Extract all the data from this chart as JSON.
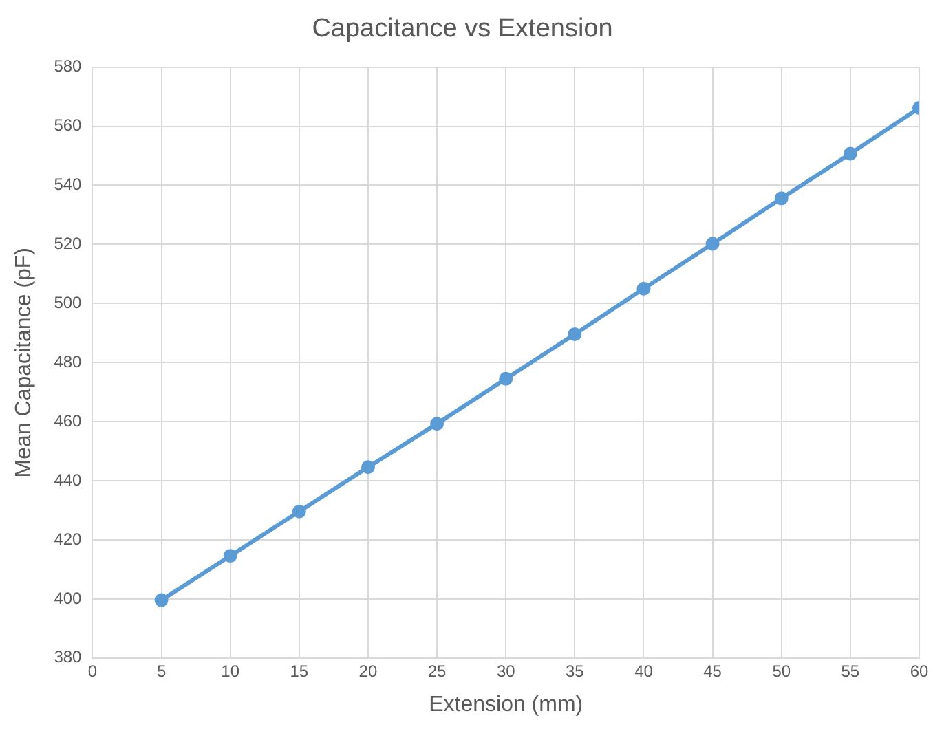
{
  "chart_data": {
    "type": "line",
    "title": "Capacitance vs Extension",
    "xlabel": "Extension (mm)",
    "ylabel": "Mean Capacitance (pF)",
    "x": [
      5,
      10,
      15,
      20,
      25,
      30,
      35,
      40,
      45,
      50,
      55,
      60
    ],
    "series": [
      {
        "color": "#5b9bd5",
        "values": [
          399.6,
          414.6,
          429.6,
          444.6,
          459.3,
          474.5,
          489.6,
          505,
          520.2,
          535.6,
          550.7,
          566.2
        ]
      }
    ],
    "xlim": [
      0,
      60
    ],
    "xticks": [
      0,
      5,
      10,
      15,
      20,
      25,
      30,
      35,
      40,
      45,
      50,
      55,
      60
    ],
    "ylim": [
      380,
      580
    ],
    "yticks": [
      380,
      400,
      420,
      440,
      460,
      480,
      500,
      520,
      540,
      560,
      580
    ],
    "grid": true,
    "legend": false,
    "marker": "circle",
    "line_style": "solid"
  }
}
